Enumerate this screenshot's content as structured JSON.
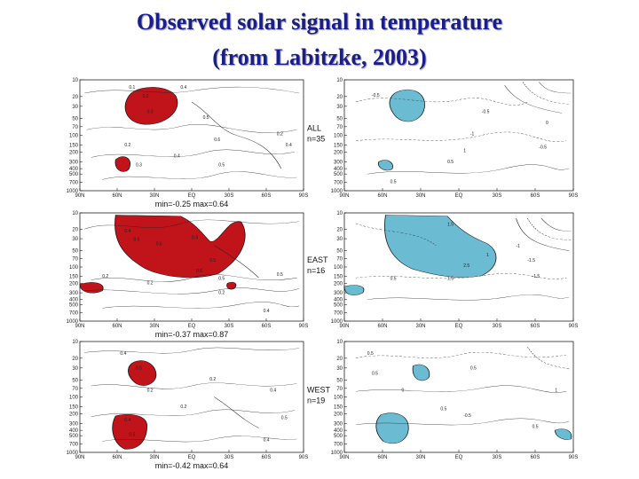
{
  "title": {
    "line1": "Observed solar signal in temperature",
    "line2": "(from Labitzke, 2003)"
  },
  "colors": {
    "title": "#1a1d8c",
    "positive_shading": "#c0141a",
    "negative_shading": "#6bbcd3",
    "contour": "#222222"
  },
  "chart_data": [
    {
      "type": "heatmap",
      "row": "ALL",
      "column": "left",
      "label_lines": [
        "ALL",
        "n=35"
      ],
      "minmax": "min=-0.25   max=0.64",
      "x_ticks": [
        "90N",
        "60N",
        "30N",
        "EQ",
        "30S",
        "60S",
        "90S"
      ],
      "y_ticks": [
        "10",
        "20",
        "30",
        "50",
        "70",
        "100",
        "150",
        "200",
        "300",
        "400",
        "500",
        "700",
        "1000"
      ],
      "y_scale": "log",
      "contour_labels": [
        "0.1",
        "0.2",
        "0.3",
        "0.4",
        "0.5",
        "0.6",
        "0.2",
        "0.4",
        "0.5",
        "0.2",
        "0.3",
        "0.4"
      ]
    },
    {
      "type": "heatmap",
      "row": "ALL",
      "column": "right",
      "x_ticks": [
        "90N",
        "60N",
        "30N",
        "EQ",
        "30S",
        "60S",
        "90S"
      ],
      "y_ticks": [
        "10",
        "20",
        "30",
        "50",
        "70",
        "100",
        "150",
        "200",
        "300",
        "400",
        "500",
        "700",
        "1000"
      ],
      "y_scale": "log",
      "contour_labels": [
        "-0.5",
        "-1",
        "1",
        "0",
        "-0.5",
        "0.5",
        "-0.5",
        "0.5"
      ]
    },
    {
      "type": "heatmap",
      "row": "EAST",
      "column": "left",
      "label_lines": [
        "EAST",
        "n=16"
      ],
      "minmax": "min=-0.37   max=0.87",
      "x_ticks": [
        "90N",
        "60N",
        "30N",
        "EQ",
        "30S",
        "60S",
        "90S"
      ],
      "y_ticks": [
        "10",
        "20",
        "30",
        "50",
        "70",
        "100",
        "150",
        "200",
        "300",
        "400",
        "500",
        "700",
        "1000"
      ],
      "y_scale": "log",
      "contour_labels": [
        "0.4",
        "0.5",
        "0.6",
        "0.4",
        "0.5",
        "0.6",
        "0.5",
        "0.2",
        "0.2",
        "0.5",
        "0.2",
        "0.4"
      ]
    },
    {
      "type": "heatmap",
      "row": "EAST",
      "column": "right",
      "x_ticks": [
        "90N",
        "60N",
        "30N",
        "EQ",
        "30S",
        "60S",
        "90S"
      ],
      "y_ticks": [
        "10",
        "20",
        "30",
        "50",
        "70",
        "100",
        "150",
        "200",
        "300",
        "400",
        "500",
        "700",
        "1000"
      ],
      "y_scale": "log",
      "contour_labels": [
        "1.5",
        "-1.5",
        "1",
        "-1.5",
        "2.5",
        "-1",
        "0.5",
        "1.5"
      ]
    },
    {
      "type": "heatmap",
      "row": "WEST",
      "column": "left",
      "label_lines": [
        "WEST",
        "n=19"
      ],
      "minmax": "min=-0.42   max=0.64",
      "x_ticks": [
        "90N",
        "60N",
        "30N",
        "EQ",
        "30S",
        "60S",
        "90S"
      ],
      "y_ticks": [
        "10",
        "20",
        "30",
        "50",
        "70",
        "100",
        "150",
        "200",
        "300",
        "400",
        "500",
        "700",
        "1000"
      ],
      "y_scale": "log",
      "contour_labels": [
        "0.4",
        "0.5",
        "0.2",
        "0.4",
        "0.5",
        "0.2",
        "0.2",
        "0.4",
        "0.5",
        "0.4"
      ]
    },
    {
      "type": "heatmap",
      "row": "WEST",
      "column": "right",
      "x_ticks": [
        "90N",
        "60N",
        "30N",
        "EQ",
        "30S",
        "60S",
        "90S"
      ],
      "y_ticks": [
        "10",
        "20",
        "30",
        "50",
        "70",
        "100",
        "150",
        "200",
        "300",
        "400",
        "500",
        "700",
        "1000"
      ],
      "y_scale": "log",
      "contour_labels": [
        "0.5",
        "0.5",
        "0",
        "0.5",
        "0.5",
        "-0.5",
        "0.5",
        "1"
      ]
    }
  ]
}
